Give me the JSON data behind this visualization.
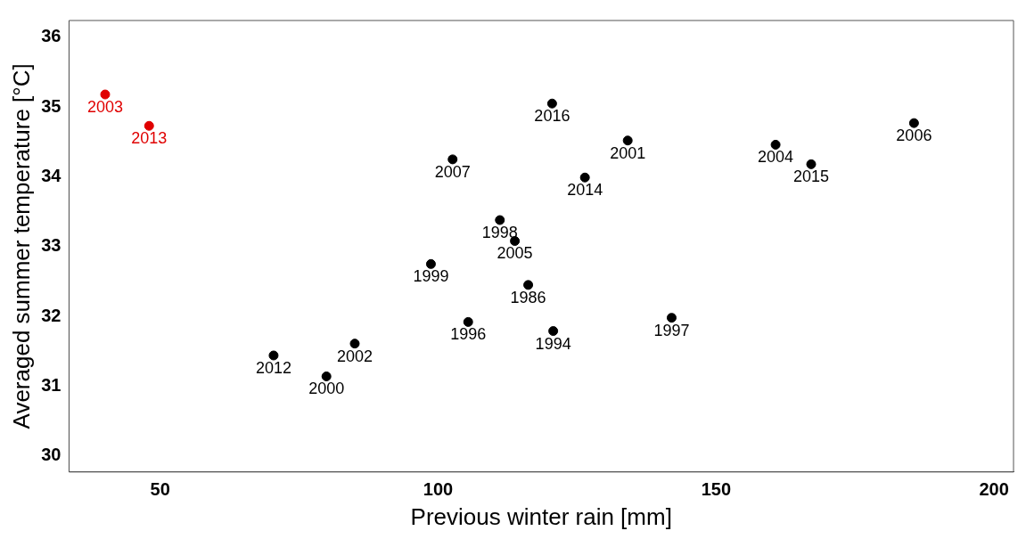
{
  "chart_data": {
    "type": "scatter",
    "xlabel": "Previous winter rain [mm]",
    "ylabel": "Averaged summer temperature [°C]",
    "xlim": [
      33.6,
      203.5
    ],
    "xticks": [
      50,
      100,
      150,
      200
    ],
    "ylim": [
      29.77,
      36.24
    ],
    "yticks": [
      30,
      31,
      32,
      33,
      34,
      35,
      36
    ],
    "grid": false,
    "legend": false,
    "marker": "circle",
    "series": [
      {
        "x": [
          40.1,
          48.0,
          120.5,
          102.6,
          126.4,
          111.1,
          113.8,
          98.7,
          116.2,
          105.4,
          120.7,
          70.4,
          85.0,
          79.9,
          134.1,
          160.7,
          167.1,
          185.6,
          142.0
        ],
        "values": [
          35.18,
          34.73,
          35.05,
          34.25,
          33.99,
          33.38,
          33.08,
          32.75,
          32.45,
          31.92,
          31.79,
          31.44,
          31.61,
          31.14,
          34.52,
          34.46,
          34.18,
          34.77,
          31.98
        ],
        "colors": [
          "#e00000",
          "#e00000",
          "#000000",
          "#000000",
          "#000000",
          "#000000",
          "#000000",
          "#000000",
          "#000000",
          "#000000",
          "#000000",
          "#000000",
          "#000000",
          "#000000",
          "#000000",
          "#000000",
          "#000000",
          "#000000",
          "#000000"
        ]
      }
    ],
    "annotations": [
      {
        "text": "2003",
        "x": 40.1,
        "y": 35.18
      },
      {
        "text": "2013",
        "x": 48.0,
        "y": 34.73
      },
      {
        "text": "2016",
        "x": 120.5,
        "y": 35.05
      },
      {
        "text": "2007",
        "x": 102.6,
        "y": 34.25
      },
      {
        "text": "2014",
        "x": 126.4,
        "y": 33.99
      },
      {
        "text": "1998",
        "x": 111.1,
        "y": 33.38
      },
      {
        "text": "2005",
        "x": 113.8,
        "y": 33.08
      },
      {
        "text": "1999",
        "x": 98.7,
        "y": 32.75
      },
      {
        "text": "1986",
        "x": 116.2,
        "y": 32.45
      },
      {
        "text": "1996",
        "x": 105.4,
        "y": 31.92
      },
      {
        "text": "1994",
        "x": 120.7,
        "y": 31.79
      },
      {
        "text": "2012",
        "x": 70.4,
        "y": 31.44
      },
      {
        "text": "2002",
        "x": 85.0,
        "y": 31.61
      },
      {
        "text": "2000",
        "x": 79.9,
        "y": 31.14
      },
      {
        "text": "2001",
        "x": 134.1,
        "y": 34.52
      },
      {
        "text": "2004",
        "x": 160.7,
        "y": 34.46
      },
      {
        "text": "2015",
        "x": 167.1,
        "y": 34.18
      },
      {
        "text": "2006",
        "x": 185.6,
        "y": 34.77
      },
      {
        "text": "1997",
        "x": 142.0,
        "y": 31.98
      }
    ]
  }
}
